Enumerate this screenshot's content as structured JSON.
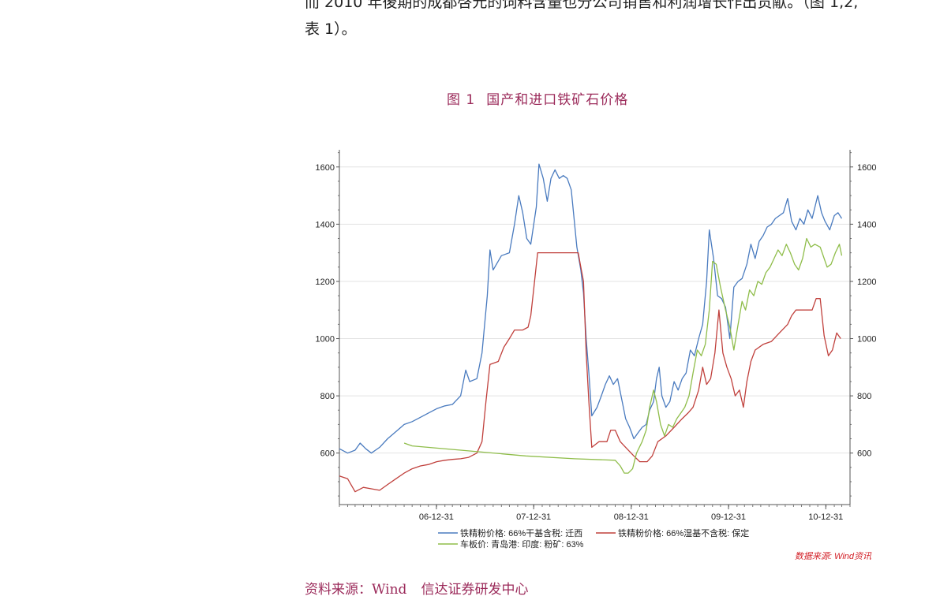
{
  "body_text": {
    "line1": "而 2010 年後期的成都啓元的饲料含量也分公司销售和利润增长作出贡献。（图 1,2,",
    "line2": "表 1）。"
  },
  "figure": {
    "number": "图 1",
    "title": "国产和进口铁矿石价格",
    "watermark": "数据来源: Wind资讯",
    "source_label": "资料来源：Wind",
    "source_org": "信达证券研发中心"
  },
  "colors": {
    "blue": "#4a7bbf",
    "red": "#c0403c",
    "green": "#8fbd4a",
    "accent": "#9b2a5a",
    "watermark": "#d21f26"
  },
  "chart_data": {
    "type": "line",
    "x_type": "date",
    "ylim": [
      420,
      1660
    ],
    "xlim": [
      "2006-01-01",
      "2011-04-01"
    ],
    "y_ticks": [
      600,
      800,
      1000,
      1200,
      1400,
      1600
    ],
    "x_ticks": [
      "2006-12-31",
      "2007-12-31",
      "2008-12-31",
      "2009-12-31",
      "2010-12-31"
    ],
    "x_tick_labels": [
      "06-12-31",
      "07-12-31",
      "08-12-31",
      "09-12-31",
      "10-12-31"
    ],
    "grid": "horizontal",
    "legend_position": "bottom",
    "series": [
      {
        "name": "铁精粉价格: 66%干基含税: 迁西",
        "color": "#4a7bbf",
        "points": [
          [
            "2006-01-01",
            615
          ],
          [
            "2006-02-01",
            600
          ],
          [
            "2006-03-01",
            610
          ],
          [
            "2006-03-20",
            635
          ],
          [
            "2006-04-10",
            615
          ],
          [
            "2006-05-01",
            600
          ],
          [
            "2006-06-01",
            620
          ],
          [
            "2006-07-01",
            650
          ],
          [
            "2006-08-01",
            675
          ],
          [
            "2006-09-01",
            700
          ],
          [
            "2006-10-01",
            710
          ],
          [
            "2006-11-01",
            725
          ],
          [
            "2006-12-01",
            740
          ],
          [
            "2007-01-01",
            755
          ],
          [
            "2007-02-01",
            765
          ],
          [
            "2007-03-01",
            770
          ],
          [
            "2007-04-01",
            800
          ],
          [
            "2007-04-20",
            890
          ],
          [
            "2007-05-05",
            850
          ],
          [
            "2007-06-01",
            860
          ],
          [
            "2007-06-20",
            950
          ],
          [
            "2007-07-10",
            1150
          ],
          [
            "2007-07-20",
            1310
          ],
          [
            "2007-08-01",
            1240
          ],
          [
            "2007-09-01",
            1290
          ],
          [
            "2007-10-01",
            1300
          ],
          [
            "2007-10-20",
            1400
          ],
          [
            "2007-11-05",
            1500
          ],
          [
            "2007-11-20",
            1440
          ],
          [
            "2007-12-05",
            1350
          ],
          [
            "2007-12-20",
            1330
          ],
          [
            "2008-01-10",
            1460
          ],
          [
            "2008-01-20",
            1610
          ],
          [
            "2008-02-05",
            1560
          ],
          [
            "2008-02-20",
            1480
          ],
          [
            "2008-03-05",
            1560
          ],
          [
            "2008-03-20",
            1590
          ],
          [
            "2008-04-05",
            1560
          ],
          [
            "2008-04-20",
            1570
          ],
          [
            "2008-05-05",
            1560
          ],
          [
            "2008-05-20",
            1520
          ],
          [
            "2008-06-10",
            1320
          ],
          [
            "2008-06-25",
            1240
          ],
          [
            "2008-07-05",
            1160
          ],
          [
            "2008-07-15",
            1000
          ],
          [
            "2008-07-25",
            880
          ],
          [
            "2008-08-05",
            730
          ],
          [
            "2008-08-25",
            760
          ],
          [
            "2008-09-10",
            800
          ],
          [
            "2008-09-25",
            840
          ],
          [
            "2008-10-10",
            870
          ],
          [
            "2008-10-25",
            840
          ],
          [
            "2008-11-10",
            860
          ],
          [
            "2008-11-25",
            790
          ],
          [
            "2008-12-10",
            720
          ],
          [
            "2008-12-25",
            690
          ],
          [
            "2009-01-10",
            650
          ],
          [
            "2009-01-25",
            670
          ],
          [
            "2009-02-10",
            690
          ],
          [
            "2009-02-25",
            700
          ],
          [
            "2009-03-10",
            750
          ],
          [
            "2009-03-25",
            780
          ],
          [
            "2009-04-05",
            860
          ],
          [
            "2009-04-15",
            900
          ],
          [
            "2009-04-25",
            800
          ],
          [
            "2009-05-10",
            760
          ],
          [
            "2009-05-25",
            780
          ],
          [
            "2009-06-10",
            850
          ],
          [
            "2009-06-25",
            820
          ],
          [
            "2009-07-10",
            860
          ],
          [
            "2009-07-25",
            880
          ],
          [
            "2009-08-10",
            960
          ],
          [
            "2009-08-25",
            940
          ],
          [
            "2009-09-10",
            1000
          ],
          [
            "2009-09-25",
            1050
          ],
          [
            "2009-10-10",
            1200
          ],
          [
            "2009-10-20",
            1380
          ],
          [
            "2009-11-05",
            1280
          ],
          [
            "2009-11-20",
            1150
          ],
          [
            "2009-12-05",
            1140
          ],
          [
            "2009-12-20",
            1110
          ],
          [
            "2010-01-05",
            1000
          ],
          [
            "2010-01-20",
            1180
          ],
          [
            "2010-02-05",
            1200
          ],
          [
            "2010-02-20",
            1210
          ],
          [
            "2010-03-10",
            1260
          ],
          [
            "2010-03-25",
            1330
          ],
          [
            "2010-04-10",
            1280
          ],
          [
            "2010-04-25",
            1340
          ],
          [
            "2010-05-10",
            1360
          ],
          [
            "2010-05-25",
            1390
          ],
          [
            "2010-06-10",
            1400
          ],
          [
            "2010-06-25",
            1420
          ],
          [
            "2010-07-10",
            1430
          ],
          [
            "2010-07-25",
            1440
          ],
          [
            "2010-08-10",
            1490
          ],
          [
            "2010-08-25",
            1410
          ],
          [
            "2010-09-10",
            1380
          ],
          [
            "2010-09-25",
            1420
          ],
          [
            "2010-10-10",
            1400
          ],
          [
            "2010-10-25",
            1450
          ],
          [
            "2010-11-10",
            1420
          ],
          [
            "2010-12-01",
            1500
          ],
          [
            "2010-12-15",
            1440
          ],
          [
            "2010-12-28",
            1410
          ],
          [
            "2011-01-15",
            1380
          ],
          [
            "2011-02-01",
            1430
          ],
          [
            "2011-02-15",
            1440
          ],
          [
            "2011-03-01",
            1420
          ]
        ]
      },
      {
        "name": "铁精粉价格: 66%湿基不含税: 保定",
        "color": "#c0403c",
        "points": [
          [
            "2006-01-01",
            520
          ],
          [
            "2006-02-01",
            510
          ],
          [
            "2006-03-01",
            465
          ],
          [
            "2006-04-01",
            480
          ],
          [
            "2006-05-01",
            475
          ],
          [
            "2006-06-01",
            470
          ],
          [
            "2006-07-01",
            490
          ],
          [
            "2006-08-01",
            510
          ],
          [
            "2006-09-01",
            530
          ],
          [
            "2006-10-01",
            545
          ],
          [
            "2006-11-01",
            555
          ],
          [
            "2006-12-01",
            560
          ],
          [
            "2007-01-01",
            570
          ],
          [
            "2007-02-01",
            575
          ],
          [
            "2007-03-01",
            578
          ],
          [
            "2007-04-01",
            580
          ],
          [
            "2007-05-01",
            585
          ],
          [
            "2007-06-01",
            600
          ],
          [
            "2007-06-20",
            640
          ],
          [
            "2007-07-05",
            780
          ],
          [
            "2007-07-20",
            910
          ],
          [
            "2007-08-20",
            920
          ],
          [
            "2007-09-10",
            970
          ],
          [
            "2007-10-01",
            1000
          ],
          [
            "2007-10-20",
            1030
          ],
          [
            "2007-11-20",
            1030
          ],
          [
            "2007-12-10",
            1040
          ],
          [
            "2007-12-20",
            1080
          ],
          [
            "2008-01-01",
            1180
          ],
          [
            "2008-01-15",
            1300
          ],
          [
            "2008-03-01",
            1300
          ],
          [
            "2008-04-01",
            1300
          ],
          [
            "2008-05-01",
            1300
          ],
          [
            "2008-06-01",
            1300
          ],
          [
            "2008-06-15",
            1300
          ],
          [
            "2008-06-25",
            1250
          ],
          [
            "2008-07-05",
            1200
          ],
          [
            "2008-07-15",
            950
          ],
          [
            "2008-07-25",
            780
          ],
          [
            "2008-08-05",
            620
          ],
          [
            "2008-09-01",
            640
          ],
          [
            "2008-10-01",
            640
          ],
          [
            "2008-10-15",
            680
          ],
          [
            "2008-11-01",
            680
          ],
          [
            "2008-11-20",
            640
          ],
          [
            "2008-12-10",
            620
          ],
          [
            "2009-01-10",
            590
          ],
          [
            "2009-02-01",
            570
          ],
          [
            "2009-03-01",
            570
          ],
          [
            "2009-03-20",
            590
          ],
          [
            "2009-04-10",
            640
          ],
          [
            "2009-05-10",
            660
          ],
          [
            "2009-06-10",
            690
          ],
          [
            "2009-07-10",
            720
          ],
          [
            "2009-08-01",
            740
          ],
          [
            "2009-08-20",
            760
          ],
          [
            "2009-09-10",
            820
          ],
          [
            "2009-09-25",
            900
          ],
          [
            "2009-10-10",
            840
          ],
          [
            "2009-10-25",
            860
          ],
          [
            "2009-11-10",
            950
          ],
          [
            "2009-11-25",
            1100
          ],
          [
            "2009-12-10",
            950
          ],
          [
            "2009-12-25",
            900
          ],
          [
            "2010-01-10",
            860
          ],
          [
            "2010-01-25",
            800
          ],
          [
            "2010-02-10",
            820
          ],
          [
            "2010-02-25",
            760
          ],
          [
            "2010-03-10",
            850
          ],
          [
            "2010-03-25",
            920
          ],
          [
            "2010-04-10",
            960
          ],
          [
            "2010-05-10",
            980
          ],
          [
            "2010-06-10",
            990
          ],
          [
            "2010-07-10",
            1020
          ],
          [
            "2010-08-10",
            1050
          ],
          [
            "2010-08-25",
            1080
          ],
          [
            "2010-09-10",
            1100
          ],
          [
            "2010-10-10",
            1100
          ],
          [
            "2010-11-10",
            1100
          ],
          [
            "2010-11-25",
            1140
          ],
          [
            "2010-12-10",
            1140
          ],
          [
            "2010-12-25",
            1010
          ],
          [
            "2011-01-10",
            940
          ],
          [
            "2011-01-25",
            960
          ],
          [
            "2011-02-10",
            1020
          ],
          [
            "2011-02-25",
            1000
          ]
        ]
      },
      {
        "name": "车板价: 青岛港: 印度: 粉矿: 63%",
        "color": "#8fbd4a",
        "points": [
          [
            "2006-09-01",
            635
          ],
          [
            "2006-10-01",
            625
          ],
          [
            "2007-04-01",
            610
          ],
          [
            "2007-12-01",
            590
          ],
          [
            "2008-06-01",
            580
          ],
          [
            "2008-11-01",
            575
          ],
          [
            "2008-11-20",
            555
          ],
          [
            "2008-12-05",
            530
          ],
          [
            "2008-12-20",
            530
          ],
          [
            "2009-01-05",
            545
          ],
          [
            "2009-01-20",
            600
          ],
          [
            "2009-02-10",
            640
          ],
          [
            "2009-02-25",
            680
          ],
          [
            "2009-03-10",
            760
          ],
          [
            "2009-03-25",
            820
          ],
          [
            "2009-04-05",
            780
          ],
          [
            "2009-04-20",
            700
          ],
          [
            "2009-05-05",
            660
          ],
          [
            "2009-05-20",
            700
          ],
          [
            "2009-06-05",
            690
          ],
          [
            "2009-06-20",
            720
          ],
          [
            "2009-07-05",
            740
          ],
          [
            "2009-07-20",
            760
          ],
          [
            "2009-08-05",
            800
          ],
          [
            "2009-08-20",
            880
          ],
          [
            "2009-09-05",
            960
          ],
          [
            "2009-09-20",
            940
          ],
          [
            "2009-10-05",
            980
          ],
          [
            "2009-10-20",
            1100
          ],
          [
            "2009-11-01",
            1270
          ],
          [
            "2009-11-15",
            1260
          ],
          [
            "2009-12-01",
            1180
          ],
          [
            "2009-12-20",
            1100
          ],
          [
            "2010-01-05",
            1040
          ],
          [
            "2010-01-20",
            960
          ],
          [
            "2010-02-05",
            1050
          ],
          [
            "2010-02-20",
            1130
          ],
          [
            "2010-03-05",
            1100
          ],
          [
            "2010-03-20",
            1170
          ],
          [
            "2010-04-05",
            1150
          ],
          [
            "2010-04-20",
            1200
          ],
          [
            "2010-05-05",
            1190
          ],
          [
            "2010-05-20",
            1230
          ],
          [
            "2010-06-05",
            1250
          ],
          [
            "2010-06-20",
            1280
          ],
          [
            "2010-07-05",
            1310
          ],
          [
            "2010-07-20",
            1290
          ],
          [
            "2010-08-05",
            1330
          ],
          [
            "2010-08-20",
            1300
          ],
          [
            "2010-09-05",
            1260
          ],
          [
            "2010-09-20",
            1240
          ],
          [
            "2010-10-05",
            1280
          ],
          [
            "2010-10-20",
            1350
          ],
          [
            "2010-11-05",
            1320
          ],
          [
            "2010-11-20",
            1330
          ],
          [
            "2010-12-10",
            1320
          ],
          [
            "2011-01-05",
            1250
          ],
          [
            "2011-01-20",
            1260
          ],
          [
            "2011-02-05",
            1300
          ],
          [
            "2011-02-20",
            1330
          ],
          [
            "2011-03-01",
            1290
          ]
        ]
      }
    ]
  }
}
